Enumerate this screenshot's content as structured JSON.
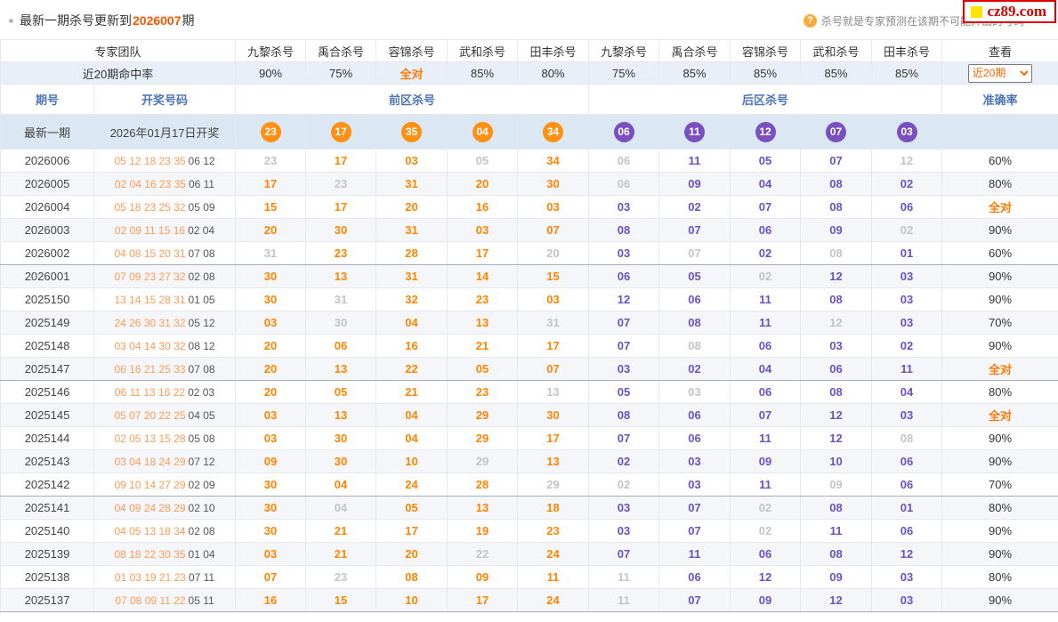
{
  "colors": {
    "accent_orange": "#ff8400",
    "accent_purple": "#6b51c4",
    "miss_gray": "#c3c4c8",
    "header_blue": "#4d77b8",
    "highlight_orange_red": "#ff5500",
    "brand_red": "#d40000",
    "brand_yellow": "#ffe400",
    "latest_row_bg": "#dce7f4"
  },
  "page": {
    "notice_prefix": "最新一期杀号更新到",
    "notice_period": "2026007",
    "notice_suffix": "期",
    "help_icon": "question-mark-in-circle",
    "help_text": "杀号就是专家预测在该期不可能开出的号码",
    "logo_text": "cz89.com"
  },
  "experts": {
    "team_label": "专家团队",
    "columns": [
      "九黎杀号",
      "禹合杀号",
      "容锦杀号",
      "武和杀号",
      "田丰杀号",
      "九黎杀号",
      "禹合杀号",
      "容锦杀号",
      "武和杀号",
      "田丰杀号"
    ],
    "view_label": "查看",
    "hit_rate_label": "近20期命中率",
    "hit_rates": [
      "90%",
      "75%",
      "全对",
      "85%",
      "80%",
      "75%",
      "85%",
      "85%",
      "85%",
      "85%"
    ],
    "range_option": "近20期"
  },
  "table": {
    "col_period": "期号",
    "col_draw": "开奖号码",
    "col_front": "前区杀号",
    "col_back": "后区杀号",
    "col_accuracy": "准确率",
    "latest": {
      "period_label": "最新一期",
      "draw_label": "2026年01月17日开奖",
      "front_balls": [
        "23",
        "17",
        "35",
        "04",
        "34"
      ],
      "back_balls": [
        "06",
        "11",
        "12",
        "07",
        "03"
      ]
    },
    "rows": [
      {
        "period": "2026006",
        "front_draw": "05 12 18 23 35",
        "back_draw": "06 12",
        "front_kills": [
          [
            "23",
            0
          ],
          [
            "17",
            1
          ],
          [
            "03",
            1
          ],
          [
            "05",
            0
          ],
          [
            "34",
            1
          ]
        ],
        "back_kills": [
          [
            "06",
            0
          ],
          [
            "11",
            1
          ],
          [
            "05",
            1
          ],
          [
            "07",
            1
          ],
          [
            "12",
            0
          ]
        ],
        "accuracy": "60%"
      },
      {
        "period": "2026005",
        "front_draw": "02 04 16 23 35",
        "back_draw": "06 11",
        "front_kills": [
          [
            "17",
            1
          ],
          [
            "23",
            0
          ],
          [
            "31",
            1
          ],
          [
            "20",
            1
          ],
          [
            "30",
            1
          ]
        ],
        "back_kills": [
          [
            "06",
            0
          ],
          [
            "09",
            1
          ],
          [
            "04",
            1
          ],
          [
            "08",
            1
          ],
          [
            "02",
            1
          ]
        ],
        "accuracy": "80%"
      },
      {
        "period": "2026004",
        "front_draw": "05 18 23 25 32",
        "back_draw": "05 09",
        "front_kills": [
          [
            "15",
            1
          ],
          [
            "17",
            1
          ],
          [
            "20",
            1
          ],
          [
            "16",
            1
          ],
          [
            "03",
            1
          ]
        ],
        "back_kills": [
          [
            "03",
            1
          ],
          [
            "02",
            1
          ],
          [
            "07",
            1
          ],
          [
            "08",
            1
          ],
          [
            "06",
            1
          ]
        ],
        "accuracy": "全对"
      },
      {
        "period": "2026003",
        "front_draw": "02 09 11 15 16",
        "back_draw": "02 04",
        "front_kills": [
          [
            "20",
            1
          ],
          [
            "30",
            1
          ],
          [
            "31",
            1
          ],
          [
            "03",
            1
          ],
          [
            "07",
            1
          ]
        ],
        "back_kills": [
          [
            "08",
            1
          ],
          [
            "07",
            1
          ],
          [
            "06",
            1
          ],
          [
            "09",
            1
          ],
          [
            "02",
            0
          ]
        ],
        "accuracy": "90%"
      },
      {
        "period": "2026002",
        "front_draw": "04 08 15 20 31",
        "back_draw": "07 08",
        "front_kills": [
          [
            "31",
            0
          ],
          [
            "23",
            1
          ],
          [
            "28",
            1
          ],
          [
            "17",
            1
          ],
          [
            "20",
            0
          ]
        ],
        "back_kills": [
          [
            "03",
            1
          ],
          [
            "07",
            0
          ],
          [
            "02",
            1
          ],
          [
            "08",
            0
          ],
          [
            "01",
            1
          ]
        ],
        "accuracy": "60%"
      },
      {
        "period": "2026001",
        "front_draw": "07 09 23 27 32",
        "back_draw": "02 08",
        "front_kills": [
          [
            "30",
            1
          ],
          [
            "13",
            1
          ],
          [
            "31",
            1
          ],
          [
            "14",
            1
          ],
          [
            "15",
            1
          ]
        ],
        "back_kills": [
          [
            "06",
            1
          ],
          [
            "05",
            1
          ],
          [
            "02",
            0
          ],
          [
            "12",
            1
          ],
          [
            "03",
            1
          ]
        ],
        "accuracy": "90%"
      },
      {
        "period": "2025150",
        "front_draw": "13 14 15 28 31",
        "back_draw": "01 05",
        "front_kills": [
          [
            "30",
            1
          ],
          [
            "31",
            0
          ],
          [
            "32",
            1
          ],
          [
            "23",
            1
          ],
          [
            "03",
            1
          ]
        ],
        "back_kills": [
          [
            "12",
            1
          ],
          [
            "06",
            1
          ],
          [
            "11",
            1
          ],
          [
            "08",
            1
          ],
          [
            "03",
            1
          ]
        ],
        "accuracy": "90%"
      },
      {
        "period": "2025149",
        "front_draw": "24 26 30 31 32",
        "back_draw": "05 12",
        "front_kills": [
          [
            "03",
            1
          ],
          [
            "30",
            0
          ],
          [
            "04",
            1
          ],
          [
            "13",
            1
          ],
          [
            "31",
            0
          ]
        ],
        "back_kills": [
          [
            "07",
            1
          ],
          [
            "08",
            1
          ],
          [
            "11",
            1
          ],
          [
            "12",
            0
          ],
          [
            "03",
            1
          ]
        ],
        "accuracy": "70%"
      },
      {
        "period": "2025148",
        "front_draw": "03 04 14 30 32",
        "back_draw": "08 12",
        "front_kills": [
          [
            "20",
            1
          ],
          [
            "06",
            1
          ],
          [
            "16",
            1
          ],
          [
            "21",
            1
          ],
          [
            "17",
            1
          ]
        ],
        "back_kills": [
          [
            "07",
            1
          ],
          [
            "08",
            0
          ],
          [
            "06",
            1
          ],
          [
            "03",
            1
          ],
          [
            "02",
            1
          ]
        ],
        "accuracy": "90%"
      },
      {
        "period": "2025147",
        "front_draw": "06 16 21 25 33",
        "back_draw": "07 08",
        "front_kills": [
          [
            "20",
            1
          ],
          [
            "13",
            1
          ],
          [
            "22",
            1
          ],
          [
            "05",
            1
          ],
          [
            "07",
            1
          ]
        ],
        "back_kills": [
          [
            "03",
            1
          ],
          [
            "02",
            1
          ],
          [
            "04",
            1
          ],
          [
            "06",
            1
          ],
          [
            "11",
            1
          ]
        ],
        "accuracy": "全对"
      },
      {
        "period": "2025146",
        "front_draw": "06 11 13 16 22",
        "back_draw": "02 03",
        "front_kills": [
          [
            "20",
            1
          ],
          [
            "05",
            1
          ],
          [
            "21",
            1
          ],
          [
            "23",
            1
          ],
          [
            "13",
            0
          ]
        ],
        "back_kills": [
          [
            "05",
            1
          ],
          [
            "03",
            0
          ],
          [
            "06",
            1
          ],
          [
            "08",
            1
          ],
          [
            "04",
            1
          ]
        ],
        "accuracy": "80%"
      },
      {
        "period": "2025145",
        "front_draw": "05 07 20 22 25",
        "back_draw": "04 05",
        "front_kills": [
          [
            "03",
            1
          ],
          [
            "13",
            1
          ],
          [
            "04",
            1
          ],
          [
            "29",
            1
          ],
          [
            "30",
            1
          ]
        ],
        "back_kills": [
          [
            "08",
            1
          ],
          [
            "06",
            1
          ],
          [
            "07",
            1
          ],
          [
            "12",
            1
          ],
          [
            "03",
            1
          ]
        ],
        "accuracy": "全对"
      },
      {
        "period": "2025144",
        "front_draw": "02 05 13 15 28",
        "back_draw": "05 08",
        "front_kills": [
          [
            "03",
            1
          ],
          [
            "30",
            1
          ],
          [
            "04",
            1
          ],
          [
            "29",
            1
          ],
          [
            "17",
            1
          ]
        ],
        "back_kills": [
          [
            "07",
            1
          ],
          [
            "06",
            1
          ],
          [
            "11",
            1
          ],
          [
            "12",
            1
          ],
          [
            "08",
            0
          ]
        ],
        "accuracy": "90%"
      },
      {
        "period": "2025143",
        "front_draw": "03 04 18 24 29",
        "back_draw": "07 12",
        "front_kills": [
          [
            "09",
            1
          ],
          [
            "30",
            1
          ],
          [
            "10",
            1
          ],
          [
            "29",
            0
          ],
          [
            "13",
            1
          ]
        ],
        "back_kills": [
          [
            "02",
            1
          ],
          [
            "03",
            1
          ],
          [
            "09",
            1
          ],
          [
            "10",
            1
          ],
          [
            "06",
            1
          ]
        ],
        "accuracy": "90%"
      },
      {
        "period": "2025142",
        "front_draw": "09 10 14 27 29",
        "back_draw": "02 09",
        "front_kills": [
          [
            "30",
            1
          ],
          [
            "04",
            1
          ],
          [
            "24",
            1
          ],
          [
            "28",
            1
          ],
          [
            "29",
            0
          ]
        ],
        "back_kills": [
          [
            "02",
            0
          ],
          [
            "03",
            1
          ],
          [
            "11",
            1
          ],
          [
            "09",
            0
          ],
          [
            "06",
            1
          ]
        ],
        "accuracy": "70%"
      },
      {
        "period": "2025141",
        "front_draw": "04 09 24 28 29",
        "back_draw": "02 10",
        "front_kills": [
          [
            "30",
            1
          ],
          [
            "04",
            0
          ],
          [
            "05",
            1
          ],
          [
            "13",
            1
          ],
          [
            "18",
            1
          ]
        ],
        "back_kills": [
          [
            "03",
            1
          ],
          [
            "07",
            1
          ],
          [
            "02",
            0
          ],
          [
            "08",
            1
          ],
          [
            "01",
            1
          ]
        ],
        "accuracy": "80%"
      },
      {
        "period": "2025140",
        "front_draw": "04 05 13 18 34",
        "back_draw": "02 08",
        "front_kills": [
          [
            "30",
            1
          ],
          [
            "21",
            1
          ],
          [
            "17",
            1
          ],
          [
            "19",
            1
          ],
          [
            "23",
            1
          ]
        ],
        "back_kills": [
          [
            "03",
            1
          ],
          [
            "07",
            1
          ],
          [
            "02",
            0
          ],
          [
            "11",
            1
          ],
          [
            "06",
            1
          ]
        ],
        "accuracy": "90%"
      },
      {
        "period": "2025139",
        "front_draw": "08 18 22 30 35",
        "back_draw": "01 04",
        "front_kills": [
          [
            "03",
            1
          ],
          [
            "21",
            1
          ],
          [
            "20",
            1
          ],
          [
            "22",
            0
          ],
          [
            "24",
            1
          ]
        ],
        "back_kills": [
          [
            "07",
            1
          ],
          [
            "11",
            1
          ],
          [
            "06",
            1
          ],
          [
            "08",
            1
          ],
          [
            "12",
            1
          ]
        ],
        "accuracy": "90%"
      },
      {
        "period": "2025138",
        "front_draw": "01 03 19 21 23",
        "back_draw": "07 11",
        "front_kills": [
          [
            "07",
            1
          ],
          [
            "23",
            0
          ],
          [
            "08",
            1
          ],
          [
            "09",
            1
          ],
          [
            "11",
            1
          ]
        ],
        "back_kills": [
          [
            "11",
            0
          ],
          [
            "06",
            1
          ],
          [
            "12",
            1
          ],
          [
            "09",
            1
          ],
          [
            "03",
            1
          ]
        ],
        "accuracy": "80%"
      },
      {
        "period": "2025137",
        "front_draw": "07 08 09 11 22",
        "back_draw": "05 11",
        "front_kills": [
          [
            "16",
            1
          ],
          [
            "15",
            1
          ],
          [
            "10",
            1
          ],
          [
            "17",
            1
          ],
          [
            "24",
            1
          ]
        ],
        "back_kills": [
          [
            "11",
            0
          ],
          [
            "07",
            1
          ],
          [
            "09",
            1
          ],
          [
            "12",
            1
          ],
          [
            "03",
            1
          ]
        ],
        "accuracy": "90%"
      }
    ]
  }
}
